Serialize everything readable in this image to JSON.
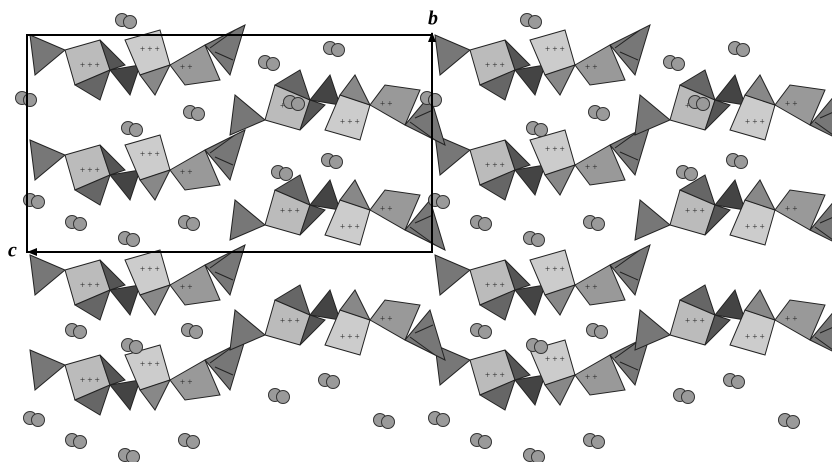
{
  "axes": {
    "b": "b",
    "c": "c"
  }
}
